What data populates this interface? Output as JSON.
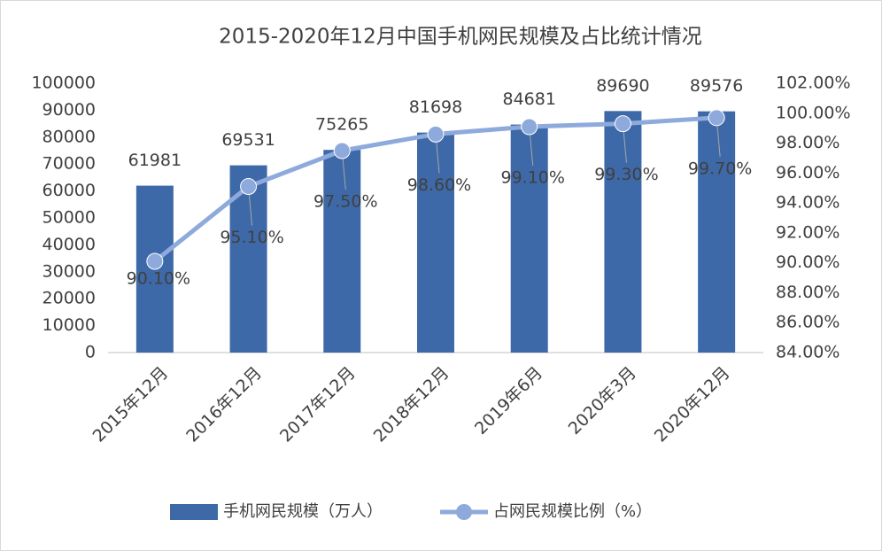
{
  "chart_data": {
    "type": "bar",
    "title": "2015-2020年12月中国手机网民规模及占比统计情况",
    "categories": [
      "2015年12月",
      "2016年12月",
      "2017年12月",
      "2018年12月",
      "2019年6月",
      "2020年3月",
      "2020年12月"
    ],
    "series": [
      {
        "name": "手机网民规模（万人）",
        "type": "bar",
        "color": "#3e69a8",
        "axis": "y",
        "values": [
          61981,
          69531,
          75265,
          81698,
          84681,
          89690,
          89576
        ]
      },
      {
        "name": "占网民规模比例（%）",
        "type": "line",
        "color": "#8eaadc",
        "axis": "y2",
        "values": [
          90.1,
          95.1,
          97.5,
          98.6,
          99.1,
          99.3,
          99.7
        ],
        "value_labels": [
          "90.10%",
          "95.10%",
          "97.50%",
          "98.60%",
          "99.10%",
          "99.30%",
          "99.70%"
        ]
      }
    ],
    "ylim": [
      0,
      100000
    ],
    "yticks": [
      0,
      10000,
      20000,
      30000,
      40000,
      50000,
      60000,
      70000,
      80000,
      90000,
      100000
    ],
    "y2lim": [
      84,
      102
    ],
    "y2ticks": [
      {
        "value": 84,
        "label": "84.00%"
      },
      {
        "value": 86,
        "label": "86.00%"
      },
      {
        "value": 88,
        "label": "88.00%"
      },
      {
        "value": 90,
        "label": "90.00%"
      },
      {
        "value": 92,
        "label": "92.00%"
      },
      {
        "value": 94,
        "label": "94.00%"
      },
      {
        "value": 96,
        "label": "96.00%"
      },
      {
        "value": 98,
        "label": "98.00%"
      },
      {
        "value": 100,
        "label": "100.00%"
      },
      {
        "value": 102,
        "label": "102.00%"
      }
    ],
    "grid": false,
    "legend": "bottom"
  }
}
